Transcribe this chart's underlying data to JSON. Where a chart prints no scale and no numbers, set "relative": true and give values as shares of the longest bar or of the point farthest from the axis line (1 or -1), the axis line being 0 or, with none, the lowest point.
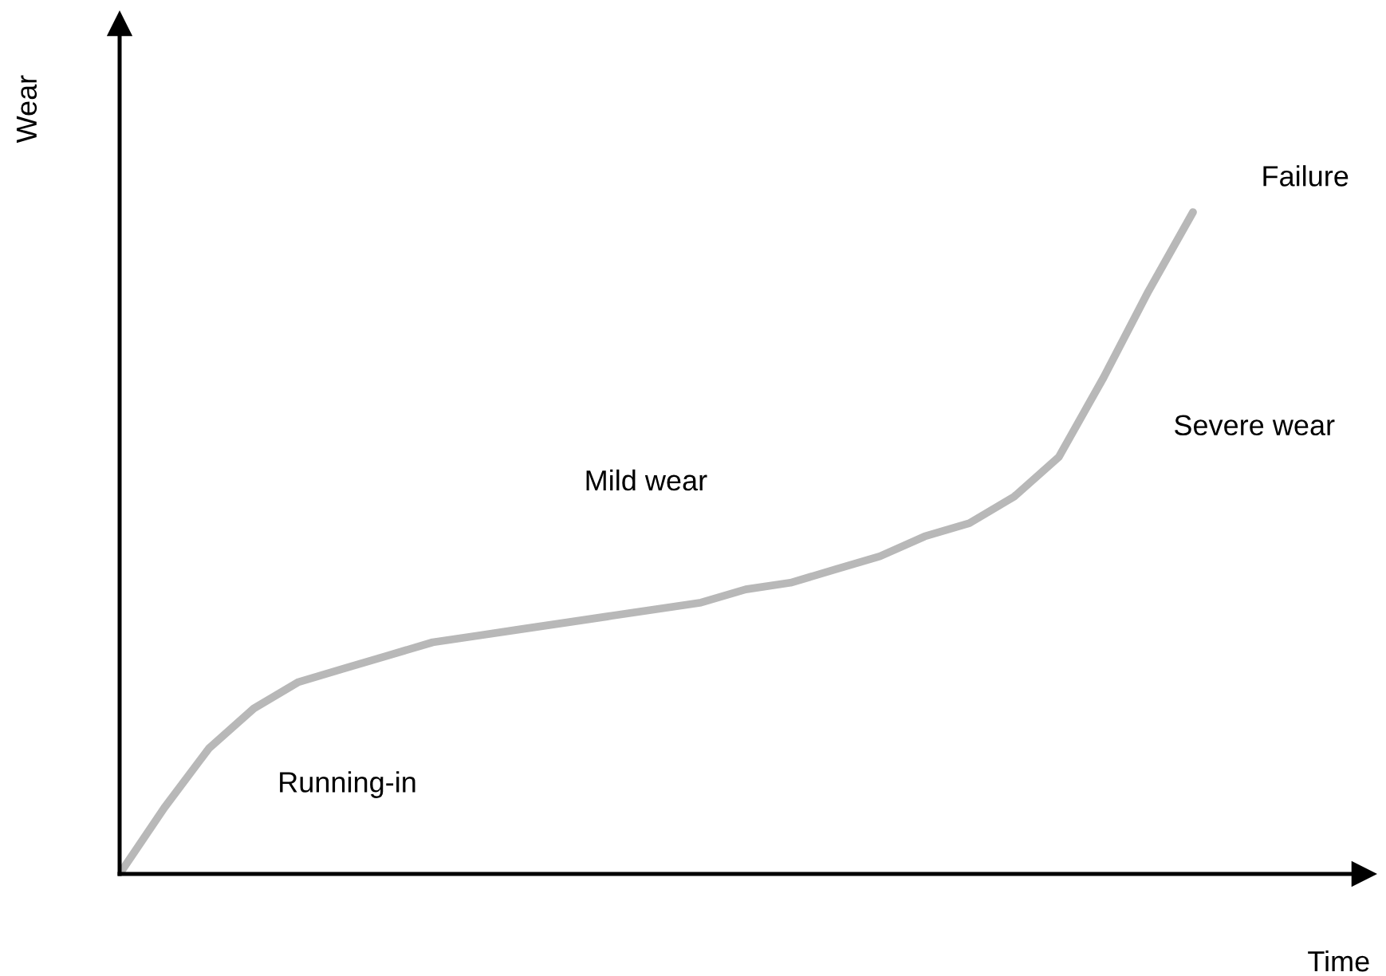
{
  "chart_data": {
    "type": "line",
    "relative": true,
    "xlabel": "Time",
    "ylabel": "Wear",
    "categories": [
      null,
      null,
      null,
      null,
      null,
      null,
      null,
      null,
      null,
      null,
      null,
      null,
      null,
      null,
      null,
      null,
      null,
      null,
      null,
      null,
      null,
      null,
      null,
      null,
      null
    ],
    "series": [
      {
        "color": "#b8b8b8",
        "values": [
          0,
          0.1,
          0.19,
          0.25,
          0.29,
          0.31,
          0.33,
          0.35,
          0.36,
          0.37,
          0.38,
          0.39,
          0.4,
          0.41,
          0.43,
          0.44,
          0.46,
          0.48,
          0.51,
          0.53,
          0.57,
          0.63,
          0.75,
          0.88,
          1
        ]
      }
    ],
    "annotations": [
      "Failure",
      "Severe wear",
      "Mild wear",
      "Running-in"
    ],
    "marker": "none",
    "line_style": "solid"
  }
}
